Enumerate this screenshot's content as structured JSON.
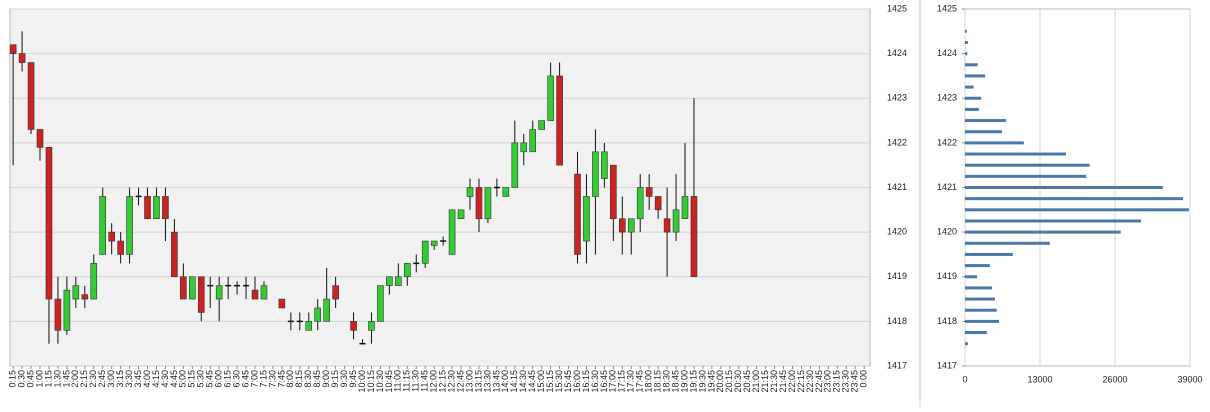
{
  "chart_data": [
    {
      "type": "candlestick",
      "categories": [
        "0:15",
        "0:30",
        "0:45",
        "1:00",
        "1:15",
        "1:30",
        "1:45",
        "2:00",
        "2:15",
        "2:30",
        "2:45",
        "3:00",
        "3:15",
        "3:30",
        "3:45",
        "4:00",
        "4:15",
        "4:30",
        "4:45",
        "5:00",
        "5:15",
        "5:30",
        "5:45",
        "6:00",
        "6:15",
        "6:30",
        "6:45",
        "7:00",
        "7:15",
        "7:30",
        "7:45",
        "8:00",
        "8:15",
        "8:30",
        "8:45",
        "9:00",
        "9:15",
        "9:30",
        "9:45",
        "10:00",
        "10:15",
        "10:30",
        "10:45",
        "11:00",
        "11:15",
        "11:30",
        "11:45",
        "12:00",
        "12:15",
        "12:30",
        "12:45",
        "13:00",
        "13:15",
        "13:30",
        "13:45",
        "14:00",
        "14:15",
        "14:30",
        "14:45",
        "15:00",
        "15:15",
        "15:30",
        "15:45",
        "16:00",
        "16:15",
        "16:30",
        "16:45",
        "17:00",
        "17:15",
        "17:30",
        "17:45",
        "18:00",
        "18:15",
        "18:30",
        "18:45",
        "19:00",
        "19:15",
        "19:30",
        "19:45",
        "20:00",
        "20:15",
        "20:30",
        "20:45",
        "21:00",
        "21:15",
        "21:30",
        "21:45",
        "22:00",
        "22:15",
        "22:30",
        "22:45",
        "23:00",
        "23:15",
        "23:30",
        "23:45",
        "0:00"
      ],
      "open": [
        1424.2,
        1424.0,
        1423.8,
        1422.3,
        1421.9,
        1418.5,
        1417.8,
        1418.5,
        1418.6,
        1418.5,
        1419.5,
        1420,
        1419.8,
        1419.5,
        1420.8,
        1420.8,
        1420.3,
        1420.8,
        1420,
        1419,
        1418.5,
        1419,
        1418.8,
        1418.5,
        1418.8,
        1418.8,
        1418.8,
        1418.7,
        1418.5,
        null,
        1418.5,
        1418,
        1418,
        1417.8,
        1418,
        1418,
        1418.8,
        null,
        1418,
        1417.5,
        1417.8,
        1418,
        1418.8,
        1418.8,
        1419,
        1419.3,
        1419.3,
        1419.7,
        1419.8,
        1419.5,
        1420.3,
        1420.8,
        1421,
        1420.3,
        1421,
        1420.8,
        1421,
        1421.8,
        1421.8,
        1422.3,
        1422.5,
        1423.5,
        null,
        1421.3,
        1419.8,
        1420.8,
        1421.2,
        1421.5,
        1420.3,
        1420,
        1420.3,
        1421,
        1420.8,
        1420.3,
        1420,
        1420.3,
        1420.8,
        null,
        null,
        null,
        null,
        null,
        null,
        null,
        null,
        null,
        null,
        null,
        null,
        null,
        null,
        null,
        null,
        null,
        null,
        null
      ],
      "high": [
        1424.2,
        1424.5,
        1423.8,
        1422.3,
        1421.9,
        1419,
        1419,
        1419,
        1418.8,
        1419.5,
        1421,
        1420.2,
        1420,
        1421,
        1421,
        1421,
        1421,
        1421,
        1420.3,
        1419.3,
        1419,
        1419,
        1419,
        1419,
        1419,
        1418.9,
        1419,
        1419,
        1418.9,
        null,
        1418.5,
        1418.2,
        1418.2,
        1418.2,
        1418.5,
        1419.2,
        1419,
        null,
        1418.2,
        1417.6,
        1418.2,
        1418.8,
        1419,
        1419.3,
        1419.3,
        1419.5,
        1419.8,
        1419.8,
        1419.9,
        1420.5,
        1420.5,
        1421.2,
        1421.2,
        1421,
        1421.2,
        1421,
        1422.5,
        1422.2,
        1422.5,
        1422.5,
        1423.8,
        1423.8,
        null,
        1421.8,
        1421.3,
        1422.3,
        1422,
        1421.5,
        1420.8,
        1420.3,
        1421.3,
        1421.3,
        1420.8,
        1421,
        1421.3,
        1422,
        1423,
        null,
        null,
        null,
        null,
        null,
        null,
        null,
        null,
        null,
        null,
        null,
        null,
        null,
        null,
        null,
        null,
        null,
        null,
        null
      ],
      "low": [
        1421.5,
        1423.6,
        1422.2,
        1421.6,
        1417.5,
        1417.5,
        1417.7,
        1418.3,
        1418.3,
        1418.5,
        1419.5,
        1419.5,
        1419.3,
        1419.3,
        1420.6,
        1420.3,
        1420.3,
        1419.8,
        1419,
        1418.5,
        1418.5,
        1418,
        1418.3,
        1418,
        1418.5,
        1418.6,
        1418.5,
        1418.5,
        1418.5,
        null,
        1418.3,
        1417.8,
        1417.8,
        1417.8,
        1417.8,
        1418,
        1418.3,
        null,
        1417.6,
        1417.5,
        1417.5,
        1418,
        1418.6,
        1418.8,
        1418.8,
        1419.1,
        1419.2,
        1419.6,
        1419.7,
        1419.5,
        1420.3,
        1420.5,
        1420,
        1420.2,
        1420.8,
        1420.8,
        1421,
        1421.5,
        1421.8,
        1422.3,
        1422.5,
        1421.5,
        null,
        1419.3,
        1419.3,
        1419.5,
        1421,
        1419.8,
        1419.5,
        1419.5,
        1420,
        1420.5,
        1420.3,
        1419,
        1419.8,
        1420.3,
        1419,
        null,
        null,
        null,
        null,
        null,
        null,
        null,
        null,
        null,
        null,
        null,
        null,
        null,
        null,
        null,
        null,
        null,
        null,
        null
      ],
      "close": [
        1424.0,
        1423.8,
        1422.3,
        1421.9,
        1418.5,
        1417.8,
        1418.7,
        1418.8,
        1418.5,
        1419.3,
        1420.8,
        1419.8,
        1419.5,
        1420.8,
        1420.8,
        1420.3,
        1420.8,
        1420.3,
        1419,
        1418.5,
        1419,
        1418.2,
        1418.8,
        1418.8,
        1418.8,
        1418.8,
        1418.8,
        1418.5,
        1418.8,
        null,
        1418.3,
        1418,
        1418,
        1418,
        1418.3,
        1418.5,
        1418.5,
        null,
        1417.8,
        1417.5,
        1418,
        1418.8,
        1419,
        1419,
        1419.3,
        1419.3,
        1419.8,
        1419.8,
        1419.8,
        1420.5,
        1420.5,
        1421,
        1420.3,
        1421,
        1421,
        1421,
        1422,
        1422,
        1422.3,
        1422.5,
        1423.5,
        1421.5,
        null,
        1419.5,
        1420.8,
        1421.8,
        1421.8,
        1420.3,
        1420,
        1420.3,
        1421,
        1420.8,
        1420.5,
        1420,
        1420.5,
        1420.8,
        1419,
        null,
        null,
        null,
        null,
        null,
        null,
        null,
        null,
        null,
        null,
        null,
        null,
        null,
        null,
        null,
        null,
        null,
        null,
        null
      ],
      "up_color": "#33cc33",
      "down_color": "#cc2222",
      "ylim": [
        1417,
        1425
      ],
      "yticks": [
        1417,
        1418,
        1419,
        1420,
        1421,
        1422,
        1423,
        1424,
        1425
      ],
      "grid": true
    },
    {
      "type": "hbar",
      "y": [
        1424.5,
        1424.25,
        1424,
        1423.75,
        1423.5,
        1423.25,
        1423,
        1422.75,
        1422.5,
        1422.25,
        1422,
        1421.75,
        1421.5,
        1421.25,
        1421,
        1420.75,
        1420.5,
        1420.25,
        1420,
        1419.75,
        1419.5,
        1419.25,
        1419,
        1418.75,
        1418.5,
        1418.25,
        1418,
        1417.75,
        1417.5
      ],
      "values": [
        300,
        500,
        400,
        2200,
        3500,
        1500,
        2800,
        2400,
        7100,
        6400,
        10200,
        17500,
        21600,
        21000,
        34300,
        37800,
        38800,
        30500,
        27000,
        14700,
        8300,
        4300,
        2100,
        4700,
        5200,
        5500,
        5900,
        3800,
        500
      ],
      "color": "#4a78a8",
      "ylim": [
        1417,
        1425
      ],
      "yticks": [
        1417,
        1418,
        1419,
        1420,
        1421,
        1422,
        1423,
        1424,
        1425
      ],
      "xlim": [
        0,
        39000
      ],
      "xticks": [
        0,
        13000,
        26000,
        39000
      ],
      "grid": true
    }
  ]
}
